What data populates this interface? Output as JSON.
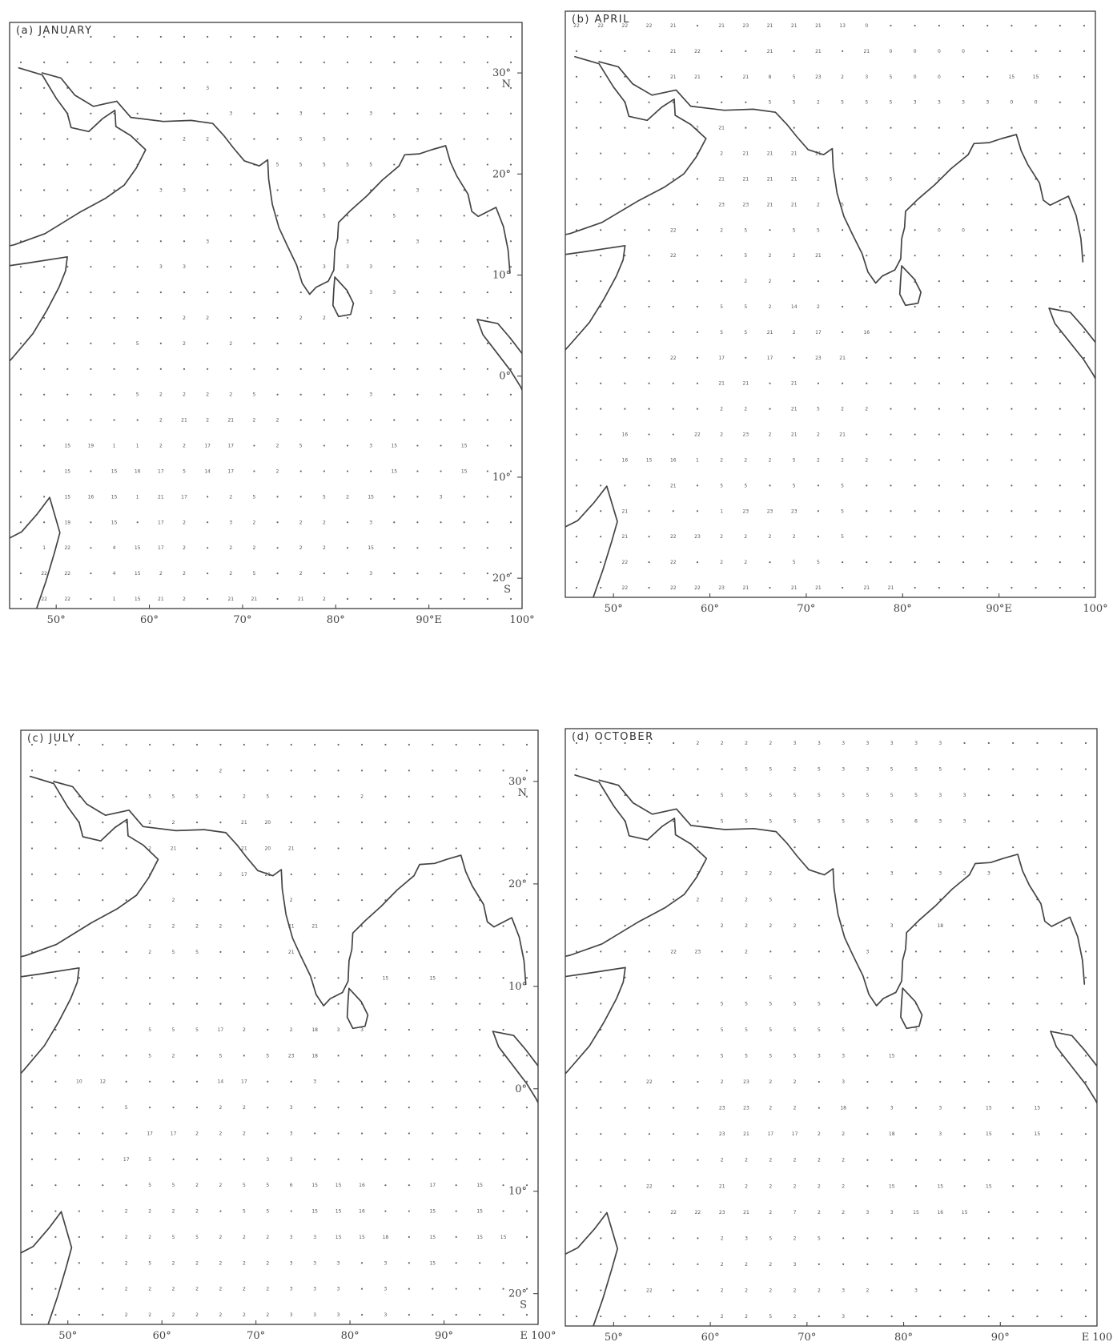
{
  "figure": {
    "panels": [
      {
        "id": "jan",
        "label": "(a) JANUARY",
        "lon_labels": [
          "50°",
          "60°",
          "70°",
          "80°",
          "90°E",
          "100°"
        ],
        "lat_labels": [
          "30°\nN",
          "20°",
          "10°",
          "0°",
          "10°",
          "20°\nS"
        ]
      },
      {
        "id": "apr",
        "label": "(b) APRIL",
        "lon_labels": [
          "50°",
          "60°",
          "70°",
          "80°",
          "90°E",
          "100°"
        ],
        "lat_labels": []
      },
      {
        "id": "jul",
        "label": "(c) JULY",
        "lon_labels": [
          "50°",
          "60°",
          "70°",
          "80°",
          "90°",
          "E 100°"
        ],
        "lat_labels": [
          "30°\nN",
          "20°",
          "10°",
          "0°",
          "10°",
          "20°\nS"
        ]
      },
      {
        "id": "oct",
        "label": "(d) OCTOBER",
        "lon_labels": [
          "50°",
          "60°",
          "70°",
          "80°",
          "90°",
          "E 100"
        ],
        "lat_labels": []
      }
    ],
    "map_extent": {
      "lon_min": 45,
      "lon_max": 100,
      "lat_min": -23,
      "lat_max": 35
    },
    "grid_codes": {
      "jan": {
        "rows": [
          "· · · · · · · · · · · · · · · · · · · · · ·",
          "· · · · · · · · · · · · · · · · · · · · · ·",
          "· · · · · · · · 3 · · · · · · · · · · · · ·",
          "· · · · · · · · · 3 · · 3 · · 3 · · · · · ·",
          "· · · · · · · 2 2 · · · 5 5 · · · · · · · ·",
          "· · · · · · · · · · · 5 5 5 5 5 · · · · · ·",
          "· · · · · · 3 3 · · · · · 5 · · · 3 · · · ·",
          "· · · · · · · · · · · · · 5 · · 5 · · · · ·",
          "· · · · · · · · 3 · · · · · 3 · · 3 · · · ·",
          "· · · · · · 3 3 · · · · · 3 3 3 · · · · · ·",
          "· · · · · · · · · · · · · · · 3 3 · · · · ·",
          "· · · · · · · 2 2 · · · 2 2 · · · · · · · ·",
          "· · · · · 5 · 2 · 2 · · · · · · · · · · · ·",
          "· · · · · · · · · · · · · · · · · · · · · ·",
          "· · · · · 5 2 2 2 2 5 · · · · 3 · · · · · ·",
          "· · · · · · 2 21 2 21 2 2 · · · · · · · · · ·",
          "· · 15 19 1 1 2 2 17 17 · 2 5 · · 3 15 · · 15 · ·",
          "· · 15 · 15 16 17 5 14 17 · 2 · · · · 15 · · 15 · ·",
          "· · 15 16 15 1 21 17 · 2 5 · · 5 2 15 · · 3 · · ·",
          "· · 19 · 15 · 17 2 · 3 2 · 2 2 · 3 · · · · · ·",
          "· 1 22 · 4 15 17 2 · 2 2 · 2 2 · 15 · · · · · ·",
          "· 22 22 · 4 15 2 2 · 2 5 · 2 · · 3 · · · · · ·",
          "· 22 22 · 1 15 21 2 · 21 21 · 21 2 · · · · · · · ·"
        ]
      },
      "apr": {
        "rows": [
          "22 22 22 22 21 · 21 23 21 21 21 13 0 · · · · · · · · ·",
          "· · · · 21 22 · · 21 · 21 · 21 0 0 0 0 · · · · ·",
          "· · · · 21 21 · 21 8 5 23 2 3 5 0 0 · · 15 15 · ·",
          "· · · · · · · · 5 5 2 5 5 5 3 3 3 3 0 0 · ·",
          "· · · · · 2 21 · · · · · · · · · · · · · · ·",
          "· · · · · · 2 21 21 21 21 · · · · · · · · · · ·",
          "· · · · · · 21 21 21 21 2 · 5 5 · 0 · · · · · ·",
          "· · · · · · 23 23 21 21 2 5 · · · · · · · · · ·",
          "· · · · 22 · 2 5 · 5 5 · · · · 0 0 · · · · ·",
          "· · · · 22 · · 5 2 2 21 · · · · · · · · · · ·",
          "· · · · · · · 2 2 · · · · · 2 · · · · · · ·",
          "· · · · · · 5 5 2 14 2 · · · · · · · · · · ·",
          "· · · · · · 5 5 21 2 17 · 16 · · · · · · · · ·",
          "· · · · 22 · 17 · 17 · 23 21 · · · · · · · · · ·",
          "· · · · · · 21 21 · 21 · · · · · · · · · · · ·",
          "· · · · · · 2 2 · 21 5 2 2 · · · · · · · · ·",
          "· · 16 · · 22 2 23 2 21 2 21 · · · · · · · · · ·",
          "· · 16 15 16 1 2 2 2 5 2 2 2 · · · · · · · · ·",
          "· · · · 21 · 5 5 · 5 · 5 · · · · · · · · · ·",
          "· · 21 · · · 1 23 23 23 · 5 · · · · · · · · · ·",
          "· · 21 · 22 23 2 2 2 2 · 5 · · · · · · · · · ·",
          "· · 22 · 22 · 2 2 · 5 5 · · · · · · · · · · ·",
          "· · 22 · 22 22 23 21 · 21 21 · 21 21 · · · · · · · ·"
        ]
      },
      "jul": {
        "rows": [
          "· · · · · · · · · · · · · · · · · · · · · ·",
          "· · · · · · · · 2 · · · · · · · · · · · · ·",
          "· · · · · 5 5 5 · 2 5 · · · 2 · · · · · · ·",
          "· · · · · 2 2 · · 21 20 · · · · · · · · · · ·",
          "· · · · · 2 21 · · 21 20 21 · · · · · · · · · ·",
          "· · · · · · · · 2 17 21 · · · · · · · · · · ·",
          "· · · · · · 2 · · · · 2 · · · · · · · · · ·",
          "· · · · · 2 2 2 2 · · 21 21 · · · · · · · · ·",
          "· · · · · 2 5 5 · · · 21 · · · · · · · · · ·",
          "· · · · · · · · · · · · · · · 15 · 15 · · · ·",
          "· · · · · · · · · · · · · · · · · · · · · ·",
          "· · · · · 5 5 5 17 2 · 2 18 3 3 · · · · · · ·",
          "· · · · · 5 2 · 5 · 5 23 18 · · · · · · · · ·",
          "· · 10 12 · · · · 14 17 · · 3 · · · · · · · · ·",
          "· · · · 5 · · · 2 2 · 3 · · · · · · · · · ·",
          "· · · · · 17 17 2 2 2 · 3 · · · · · · · · · ·",
          "· · · · 17 5 · · · · 3 3 · · · · · · · · · ·",
          "· · · · · 5 5 2 2 5 5 6 15 15 16 · · 17 · 15 · ·",
          "· · · · 2 2 2 2 · 5 5 · 15 15 16 · · 15 · 15 · ·",
          "· · · · 2 2 5 5 2 2 2 3 3 15 15 18 · 15 · 15 15 ·",
          "· · · · 2 5 2 2 2 2 2 3 3 3 · 3 · 15 · · · ·",
          "· · · · 2 2 2 2 2 2 2 3 3 3 · 3 · · · · · ·",
          "· · · · 2 2 2 2 2 2 2 3 3 3 · 3 · · · · · ·"
        ]
      },
      "oct": {
        "rows": [
          "· · · · · 2 2 2 2 3 3 3 3 3 3 3 · · · · · ·",
          "· · · · · · · 5 5 2 5 3 3 5 5 5 · · · · · ·",
          "· · · · · · 5 5 5 5 5 5 5 5 5 3 3 · · · · ·",
          "· · · · · · 5 5 5 5 5 5 5 5 6 3 3 · · · · ·",
          "· · · · · · · · · · · · · · · · · · · · · ·",
          "· · · · · 2 2 2 2 · · · · 3 · 3 3 3 · · · ·",
          "· · · · · 2 2 2 5 · · · · · · · · · · · · ·",
          "· · · · · · 2 2 2 2 · · · 3 · 18 · · · · · ·",
          "· · · · 22 23 · 2 · · · · 3 · · · · · · · · ·",
          "· · · · · · · · 5 · · · · · · · · · · · · ·",
          "· · · · · · 5 5 5 5 5 · · · · · · · · · · ·",
          "· · · · · · 5 5 5 5 5 5 · · 3 · · · · · · ·",
          "· · · · · · 5 5 5 5 3 3 · 15 · · · · · · · ·",
          "· · · 22 · · 2 23 2 2 · 3 · · · · · · · · · ·",
          "· · · · · · 23 23 2 2 · 18 · 3 · 3 · 15 · 15 · ·",
          "· · · · · · 23 21 17 17 2 2 · 18 · 3 · 15 · 15 · ·",
          "· · · · · · 2 2 2 2 2 2 · · · · · · · · · ·",
          "· · · 22 · · 21 2 2 2 2 2 · 15 · 15 · 15 · · · ·",
          "· · · · 22 22 23 21 2 7 2 2 3 3 15 16 15 · · · · ·",
          "· · · · · · 2 3 5 2 5 · · · · · · · · · · ·",
          "· · · · · · 2 2 2 3 · · · · · · · · · · · ·",
          "· · · 22 · · 2 2 2 2 2 3 2 · 3 · · · · · · ·",
          "· · · · · · 2 2 5 2 · 3 · · · · · · · · · ·"
        ]
      }
    }
  }
}
